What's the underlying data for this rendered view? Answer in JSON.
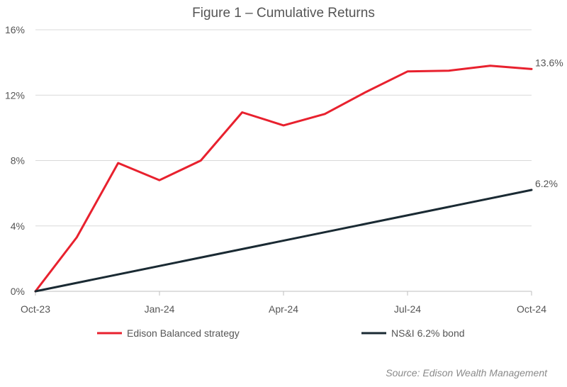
{
  "chart_data": {
    "type": "line",
    "title": "Figure 1 – Cumulative Returns",
    "source": "Source: Edison Wealth Management",
    "x_labels": [
      "Oct-23",
      "Jan-24",
      "Apr-24",
      "Jul-24",
      "Oct-24"
    ],
    "x_label_positions": [
      0,
      3,
      6,
      9,
      12
    ],
    "y_ticks": [
      0,
      4,
      8,
      12,
      16
    ],
    "y_tick_labels": [
      "0%",
      "4%",
      "8%",
      "12%",
      "16%"
    ],
    "ylim": [
      0,
      16
    ],
    "xlim": [
      0,
      12
    ],
    "y_unit": "%",
    "grid": "horizontal",
    "legend_position": "bottom",
    "series": [
      {
        "name": "Edison Balanced strategy",
        "color": "#e8212e",
        "x": [
          0,
          1,
          2,
          3,
          4,
          5,
          6,
          7,
          8,
          9,
          10,
          11,
          12
        ],
        "values": [
          0,
          3.3,
          7.85,
          6.8,
          8.0,
          10.95,
          10.15,
          10.85,
          12.2,
          13.45,
          13.5,
          13.8,
          13.6
        ],
        "end_label": "13.6%"
      },
      {
        "name": "NS&I 6.2% bond",
        "color": "#1a2a33",
        "x": [
          0,
          12
        ],
        "values": [
          0,
          6.2
        ],
        "end_label": "6.2%"
      }
    ]
  }
}
